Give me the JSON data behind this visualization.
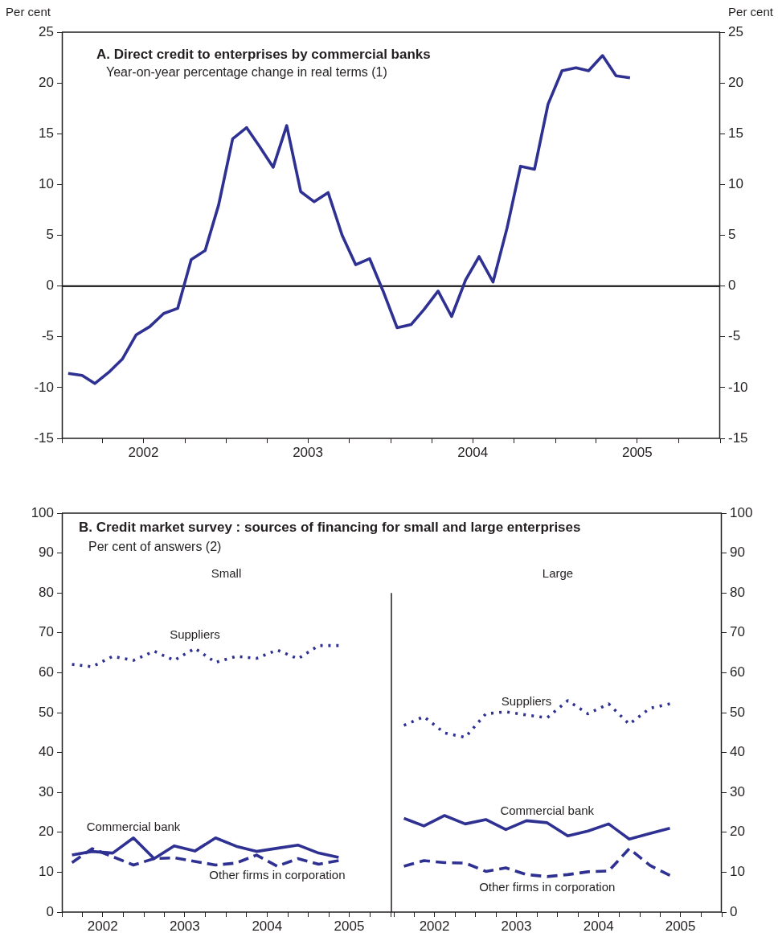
{
  "chart_data": [
    {
      "type": "line",
      "title": "A. Direct credit to enterprises by commercial banks",
      "subtitle": "Year-on-year percentage change in real terms (1)",
      "ylabel": "Per cent",
      "y2label": "Per cent",
      "x": [
        "2002-01-15",
        "2002-02-15",
        "2002-03-15",
        "2002-04-15",
        "2002-05-15",
        "2002-06-15",
        "2002-07-15",
        "2002-08-15",
        "2002-09-15",
        "2002-10-15",
        "2002-11-15",
        "2002-12-15",
        "2003-01-15",
        "2003-02-15",
        "2003-03-15",
        "2003-04-15",
        "2003-05-15",
        "2003-06-15",
        "2003-07-15",
        "2003-08-15",
        "2003-09-15",
        "2003-10-15",
        "2003-11-15",
        "2003-12-15",
        "2004-01-15",
        "2004-02-15",
        "2004-03-15",
        "2004-04-15",
        "2004-05-15",
        "2004-06-15",
        "2004-07-15",
        "2004-08-15",
        "2004-09-15",
        "2004-10-15",
        "2004-11-15",
        "2004-12-15",
        "2005-01-15",
        "2005-02-15",
        "2005-03-15",
        "2005-04-15",
        "2005-05-15",
        "2005-06-15"
      ],
      "series": [
        {
          "color": "#2e3192",
          "line_style": "solid",
          "values": [
            -8.6,
            -8.8,
            -9.6,
            -8.5,
            -7.2,
            -4.8,
            -4.0,
            -2.7,
            -2.2,
            2.6,
            3.5,
            8.0,
            14.5,
            15.6,
            13.8,
            11.7,
            15.8,
            9.3,
            8.3,
            9.2,
            5.0,
            2.1,
            2.7,
            -0.5,
            -4.1,
            -3.8,
            -2.3,
            -0.5,
            -3.0,
            0.6,
            2.9,
            0.4,
            5.7,
            11.8,
            11.5,
            17.9,
            21.2,
            21.5,
            21.2,
            22.7,
            20.7,
            20.5
          ]
        }
      ],
      "xlim": [
        "2002-01-01",
        "2006-01-01"
      ],
      "xticks": [
        {
          "value": "2002-01-01",
          "label": null
        },
        {
          "value": "2002-04-01",
          "label": null
        },
        {
          "value": "2002-07-01",
          "label": "2002"
        },
        {
          "value": "2002-10-01",
          "label": null
        },
        {
          "value": "2003-01-01",
          "label": null
        },
        {
          "value": "2003-04-01",
          "label": null
        },
        {
          "value": "2003-07-01",
          "label": "2003"
        },
        {
          "value": "2003-10-01",
          "label": null
        },
        {
          "value": "2004-01-01",
          "label": null
        },
        {
          "value": "2004-04-01",
          "label": null
        },
        {
          "value": "2004-07-01",
          "label": "2004"
        },
        {
          "value": "2004-10-01",
          "label": null
        },
        {
          "value": "2005-01-01",
          "label": null
        },
        {
          "value": "2005-04-01",
          "label": null
        },
        {
          "value": "2005-07-01",
          "label": "2005"
        },
        {
          "value": "2005-10-01",
          "label": null
        },
        {
          "value": "2006-01-01",
          "label": null
        }
      ],
      "ylim": [
        -15,
        25
      ],
      "yticks": [
        -15,
        -10,
        -5,
        0,
        5,
        10,
        15,
        20,
        25
      ],
      "y2lim": [
        -15,
        25
      ],
      "y2ticks": [
        -15,
        -10,
        -5,
        0,
        5,
        10,
        15,
        20,
        25
      ],
      "ref_lines": [
        {
          "axis": "y",
          "value": 0,
          "color": "#000000"
        }
      ]
    },
    {
      "type": "line",
      "title": "B.  Credit market survey : sources of financing for small and large enterprises",
      "subtitle": "Per cent of answers (2)",
      "annotations": [
        "Small"
      ],
      "x": [
        "2002-02-15",
        "2002-05-15",
        "2002-08-15",
        "2002-11-15",
        "2003-02-15",
        "2003-05-15",
        "2003-08-15",
        "2003-11-15",
        "2004-02-15",
        "2004-05-15",
        "2004-08-15",
        "2004-11-15",
        "2005-02-15",
        "2005-05-15"
      ],
      "series": [
        {
          "name": "Suppliers",
          "color": "#2e3192",
          "line_style": "dotted",
          "values": [
            62.1,
            61.5,
            64.1,
            63.1,
            65.4,
            63.1,
            66.1,
            62.6,
            64.1,
            63.6,
            65.7,
            63.5,
            66.8,
            66.8
          ]
        },
        {
          "name": "Commercial bank",
          "color": "#2e3192",
          "line_style": "solid",
          "values": [
            14.3,
            15.2,
            14.8,
            18.6,
            13.4,
            16.6,
            15.3,
            18.6,
            16.5,
            15.2,
            16.0,
            16.8,
            14.8,
            13.7
          ]
        },
        {
          "name": "Other firms in corporation",
          "color": "#2e3192",
          "line_style": "dashed",
          "values": [
            12.4,
            15.9,
            13.9,
            11.8,
            13.4,
            13.6,
            12.7,
            11.8,
            12.3,
            14.3,
            11.5,
            13.4,
            12.0,
            12.9
          ]
        }
      ],
      "xlim": [
        "2002-01-01",
        "2006-01-01"
      ],
      "xticks": [
        {
          "value": "2002-01-01",
          "label": null
        },
        {
          "value": "2002-04-01",
          "label": null
        },
        {
          "value": "2002-07-01",
          "label": "2002"
        },
        {
          "value": "2002-10-01",
          "label": null
        },
        {
          "value": "2003-01-01",
          "label": null
        },
        {
          "value": "2003-04-01",
          "label": null
        },
        {
          "value": "2003-07-01",
          "label": "2003"
        },
        {
          "value": "2003-10-01",
          "label": null
        },
        {
          "value": "2004-01-01",
          "label": null
        },
        {
          "value": "2004-04-01",
          "label": null
        },
        {
          "value": "2004-07-01",
          "label": "2004"
        },
        {
          "value": "2004-10-01",
          "label": null
        },
        {
          "value": "2005-01-01",
          "label": null
        },
        {
          "value": "2005-04-01",
          "label": null
        },
        {
          "value": "2005-07-01",
          "label": "2005"
        },
        {
          "value": "2005-10-01",
          "label": null
        },
        {
          "value": "2006-01-01",
          "label": null
        }
      ],
      "ylim": [
        0,
        100
      ],
      "yticks": [
        0,
        10,
        20,
        30,
        40,
        50,
        60,
        70,
        80,
        90,
        100
      ]
    },
    {
      "type": "line",
      "annotations": [
        "Large"
      ],
      "x": [
        "2002-02-15",
        "2002-05-15",
        "2002-08-15",
        "2002-11-15",
        "2003-02-15",
        "2003-05-15",
        "2003-08-15",
        "2003-11-15",
        "2004-02-15",
        "2004-05-15",
        "2004-08-15",
        "2004-11-15",
        "2005-02-15",
        "2005-05-15"
      ],
      "series": [
        {
          "name": "Suppliers",
          "color": "#2e3192",
          "line_style": "dotted",
          "axis": "y2",
          "values": [
            46.8,
            49.0,
            44.9,
            43.8,
            49.7,
            50.2,
            49.4,
            48.7,
            53.0,
            49.7,
            52.2,
            47.1,
            51.1,
            52.2
          ]
        },
        {
          "name": "Commercial bank",
          "color": "#2e3192",
          "line_style": "solid",
          "axis": "y2",
          "values": [
            23.5,
            21.6,
            24.2,
            22.1,
            23.2,
            20.7,
            22.9,
            22.4,
            19.1,
            20.3,
            22.1,
            18.3,
            19.7,
            21.0
          ]
        },
        {
          "name": "Other firms in corporation",
          "color": "#2e3192",
          "line_style": "dashed",
          "axis": "y2",
          "values": [
            11.5,
            12.9,
            12.4,
            12.3,
            10.2,
            11.1,
            9.4,
            8.9,
            9.4,
            10.1,
            10.3,
            15.9,
            11.7,
            9.2
          ]
        }
      ],
      "xlim": [
        "2002-01-01",
        "2006-01-01"
      ],
      "xticks": [
        {
          "value": "2002-01-01",
          "label": null
        },
        {
          "value": "2002-04-01",
          "label": null
        },
        {
          "value": "2002-07-01",
          "label": "2002"
        },
        {
          "value": "2002-10-01",
          "label": null
        },
        {
          "value": "2003-01-01",
          "label": null
        },
        {
          "value": "2003-04-01",
          "label": null
        },
        {
          "value": "2003-07-01",
          "label": "2003"
        },
        {
          "value": "2003-10-01",
          "label": null
        },
        {
          "value": "2004-01-01",
          "label": null
        },
        {
          "value": "2004-04-01",
          "label": null
        },
        {
          "value": "2004-07-01",
          "label": "2004"
        },
        {
          "value": "2004-10-01",
          "label": null
        },
        {
          "value": "2005-01-01",
          "label": null
        },
        {
          "value": "2005-04-01",
          "label": null
        },
        {
          "value": "2005-07-01",
          "label": "2005"
        },
        {
          "value": "2005-10-01",
          "label": null
        },
        {
          "value": "2006-01-01",
          "label": null
        }
      ],
      "y2lim": [
        0,
        100
      ],
      "y2ticks": [
        0,
        10,
        20,
        30,
        40,
        50,
        60,
        70,
        80,
        90,
        100
      ]
    }
  ]
}
